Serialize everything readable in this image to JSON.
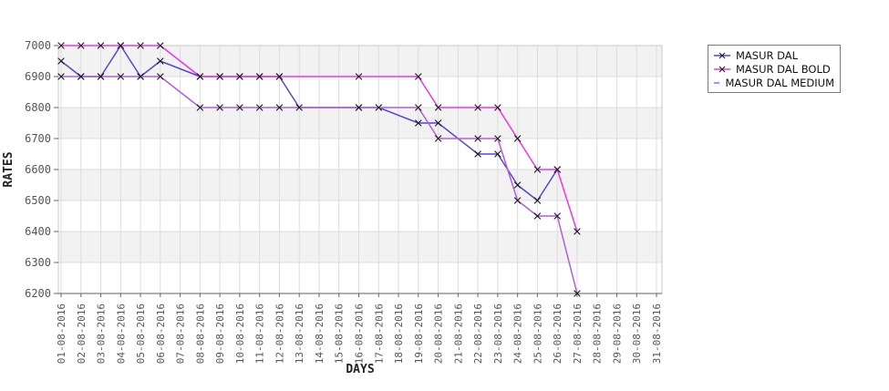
{
  "page": {
    "background": "#ffffff"
  },
  "chart_data": {
    "type": "line",
    "title": "",
    "xlabel": "DAYS",
    "ylabel": "RATES",
    "categories": [
      "01-08-2016",
      "02-08-2016",
      "03-08-2016",
      "04-08-2016",
      "05-08-2016",
      "06-08-2016",
      "07-08-2016",
      "08-08-2016",
      "09-08-2016",
      "10-08-2016",
      "11-08-2016",
      "12-08-2016",
      "13-08-2016",
      "14-08-2016",
      "15-08-2016",
      "16-08-2016",
      "17-08-2016",
      "18-08-2016",
      "19-08-2016",
      "20-08-2016",
      "21-08-2016",
      "22-08-2016",
      "23-08-2016",
      "24-08-2016",
      "25-08-2016",
      "26-08-2016",
      "27-08-2016",
      "28-08-2016",
      "29-08-2016",
      "30-08-2016",
      "31-08-2016"
    ],
    "ylim": [
      6200,
      7000
    ],
    "yticks": [
      6200,
      6300,
      6400,
      6500,
      6600,
      6700,
      6800,
      6900,
      7000
    ],
    "grid": true,
    "legend_position": "outside-right",
    "colors": {
      "band_gray": "#f2f2f2",
      "band_white": "#ffffff",
      "gridline": "#dcdcdc",
      "plot_outline": "#c8c8c8",
      "axis_line": "#7f7f7f",
      "tick_mark": "#666666",
      "tick_text": "#555555",
      "marker": "#1a1a1a",
      "legend_border": "#7a7a7a"
    },
    "marker_shape": "x",
    "series": [
      {
        "name": "MASUR DAL",
        "color": "#5b45c9",
        "points": [
          [
            1,
            6950
          ],
          [
            2,
            6900
          ],
          [
            3,
            6900
          ],
          [
            4,
            7000
          ],
          [
            5,
            6900
          ],
          [
            6,
            6950
          ],
          [
            8,
            6900
          ],
          [
            9,
            6900
          ],
          [
            10,
            6900
          ],
          [
            11,
            6900
          ],
          [
            12,
            6900
          ],
          [
            13,
            6800
          ],
          [
            16,
            6800
          ],
          [
            17,
            6800
          ],
          [
            19,
            6750
          ],
          [
            20,
            6750
          ],
          [
            22,
            6650
          ],
          [
            23,
            6650
          ],
          [
            24,
            6550
          ],
          [
            25,
            6500
          ],
          [
            26,
            6600
          ]
        ]
      },
      {
        "name": "MASUR DAL BOLD",
        "color": "#ee36e5",
        "points": [
          [
            1,
            7000
          ],
          [
            2,
            7000
          ],
          [
            3,
            7000
          ],
          [
            4,
            7000
          ],
          [
            5,
            7000
          ],
          [
            6,
            7000
          ],
          [
            8,
            6900
          ],
          [
            9,
            6900
          ],
          [
            10,
            6900
          ],
          [
            11,
            6900
          ],
          [
            12,
            6900
          ],
          [
            16,
            6900
          ],
          [
            19,
            6900
          ],
          [
            20,
            6800
          ],
          [
            22,
            6800
          ],
          [
            23,
            6800
          ],
          [
            24,
            6700
          ],
          [
            25,
            6600
          ],
          [
            26,
            6600
          ],
          [
            27,
            6400
          ]
        ]
      },
      {
        "name": "MASUR DAL MEDIUM",
        "color": "#b15edd",
        "points": [
          [
            1,
            6900
          ],
          [
            2,
            6900
          ],
          [
            3,
            6900
          ],
          [
            4,
            6900
          ],
          [
            5,
            6900
          ],
          [
            6,
            6900
          ],
          [
            8,
            6800
          ],
          [
            9,
            6800
          ],
          [
            10,
            6800
          ],
          [
            11,
            6800
          ],
          [
            12,
            6800
          ],
          [
            16,
            6800
          ],
          [
            19,
            6800
          ],
          [
            20,
            6700
          ],
          [
            22,
            6700
          ],
          [
            23,
            6700
          ],
          [
            24,
            6500
          ],
          [
            25,
            6450
          ],
          [
            26,
            6450
          ],
          [
            27,
            6200
          ]
        ]
      }
    ]
  }
}
